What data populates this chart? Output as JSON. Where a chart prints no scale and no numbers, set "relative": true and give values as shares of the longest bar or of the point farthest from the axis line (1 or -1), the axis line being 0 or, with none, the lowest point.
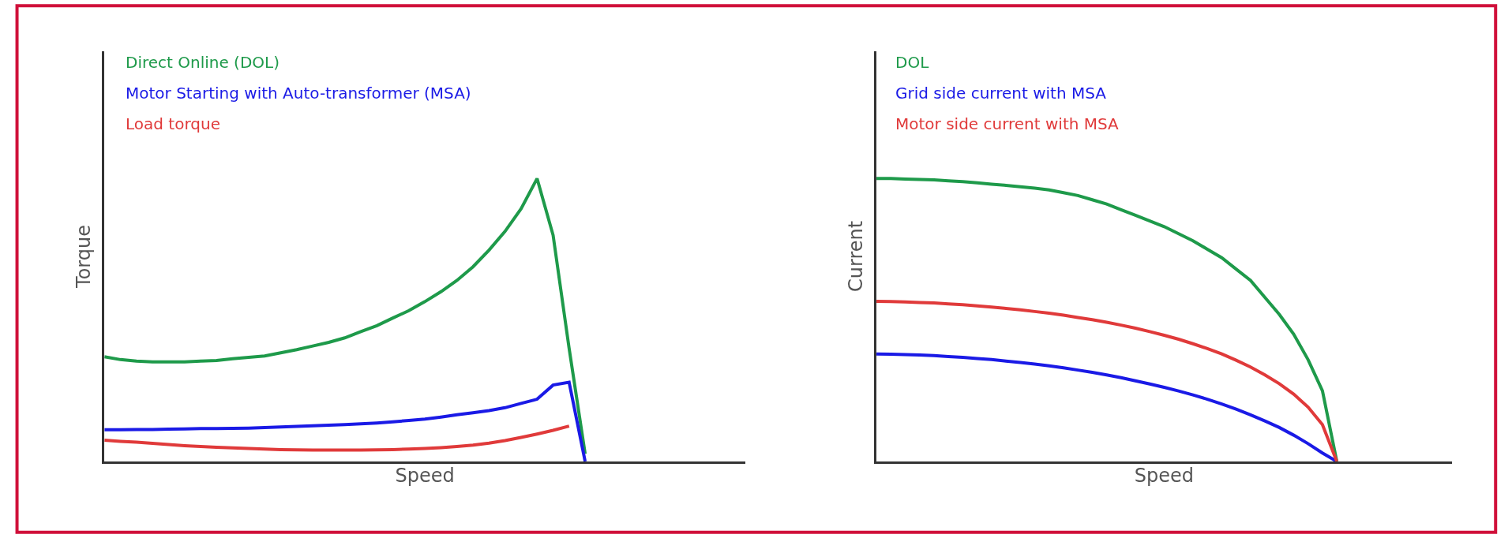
{
  "chart_data": [
    {
      "type": "line",
      "relative": true,
      "xlabel": "Speed",
      "ylabel": "Torque",
      "legend": "top left",
      "tick_labels": false,
      "marker": "none",
      "line_style": "solid",
      "categories": [
        null,
        null,
        null,
        null,
        null,
        null,
        null,
        null,
        null,
        null,
        null,
        null,
        null,
        null,
        null,
        null,
        null,
        null,
        null,
        null,
        null,
        null,
        null,
        null,
        null,
        null,
        null,
        null,
        null,
        null,
        null,
        null,
        null,
        null,
        null,
        null,
        null,
        null,
        null,
        null,
        null
      ],
      "series": [
        {
          "name": "Direct Online (DOL)",
          "color": "#1e9a4a",
          "values": [
            0.37,
            0.36,
            0.355,
            0.352,
            0.352,
            0.352,
            0.355,
            0.357,
            0.363,
            0.368,
            0.373,
            0.384,
            0.395,
            0.408,
            0.421,
            0.437,
            0.459,
            0.48,
            0.507,
            0.533,
            0.565,
            0.6,
            0.64,
            0.688,
            0.747,
            0.813,
            0.893,
            1.0,
            0.8,
            0.4,
            0.027,
            null,
            null,
            null,
            null,
            null,
            null,
            null,
            null,
            null,
            null
          ]
        },
        {
          "name": "Motor Starting with Auto-transformer (MSA)",
          "color": "#1a1ae6",
          "values": [
            0.112,
            0.112,
            0.113,
            0.113,
            0.114,
            0.115,
            0.116,
            0.116,
            0.117,
            0.118,
            0.12,
            0.122,
            0.124,
            0.126,
            0.128,
            0.13,
            0.133,
            0.136,
            0.14,
            0.145,
            0.15,
            0.157,
            0.165,
            0.172,
            0.18,
            0.19,
            0.205,
            0.22,
            0.27,
            0.28,
            0.0,
            null,
            null,
            null,
            null,
            null,
            null,
            null,
            null,
            null,
            null
          ]
        },
        {
          "name": "Load torque",
          "color": "#e03a3a",
          "values": [
            0.075,
            0.071,
            0.068,
            0.064,
            0.06,
            0.056,
            0.053,
            0.05,
            0.048,
            0.046,
            0.044,
            0.042,
            0.041,
            0.04,
            0.04,
            0.04,
            0.04,
            0.041,
            0.042,
            0.044,
            0.046,
            0.049,
            0.053,
            0.058,
            0.065,
            0.074,
            0.085,
            0.097,
            0.11,
            0.125,
            null,
            null,
            null,
            null,
            null,
            null,
            null,
            null,
            null,
            null,
            null
          ]
        }
      ]
    },
    {
      "type": "line",
      "relative": true,
      "xlabel": "Speed",
      "ylabel": "Current",
      "legend": "top left",
      "tick_labels": false,
      "marker": "none",
      "line_style": "solid",
      "categories": [
        null,
        null,
        null,
        null,
        null,
        null,
        null,
        null,
        null,
        null,
        null,
        null,
        null,
        null,
        null,
        null,
        null,
        null,
        null,
        null,
        null,
        null,
        null,
        null,
        null,
        null,
        null,
        null,
        null,
        null,
        null,
        null,
        null,
        null,
        null,
        null,
        null,
        null,
        null,
        null,
        null
      ],
      "series": [
        {
          "name": "DOL",
          "color": "#1e9a4a",
          "values": [
            1.0,
            1.0,
            0.998,
            0.997,
            0.995,
            0.992,
            0.989,
            0.985,
            0.98,
            0.976,
            0.971,
            0.966,
            0.96,
            0.95,
            0.94,
            0.925,
            0.91,
            0.89,
            0.87,
            0.85,
            0.83,
            0.805,
            0.78,
            0.75,
            0.72,
            0.68,
            0.64,
            0.58,
            0.52,
            0.45,
            0.36,
            0.25,
            0.0,
            null,
            null,
            null,
            null,
            null,
            null,
            null,
            null
          ]
        },
        {
          "name": "Grid side current with MSA",
          "color": "#1a1ae6",
          "values": [
            0.38,
            0.379,
            0.378,
            0.376,
            0.374,
            0.371,
            0.368,
            0.364,
            0.36,
            0.355,
            0.35,
            0.344,
            0.338,
            0.331,
            0.323,
            0.315,
            0.306,
            0.296,
            0.285,
            0.274,
            0.262,
            0.249,
            0.235,
            0.22,
            0.203,
            0.185,
            0.165,
            0.143,
            0.12,
            0.093,
            0.063,
            0.03,
            0.0,
            null,
            null,
            null,
            null,
            null,
            null,
            null,
            null
          ]
        },
        {
          "name": "Motor side current with MSA",
          "color": "#e03a3a",
          "values": [
            0.566,
            0.565,
            0.564,
            0.562,
            0.56,
            0.557,
            0.554,
            0.55,
            0.546,
            0.541,
            0.536,
            0.53,
            0.524,
            0.517,
            0.509,
            0.501,
            0.492,
            0.482,
            0.471,
            0.459,
            0.446,
            0.432,
            0.416,
            0.399,
            0.38,
            0.358,
            0.334,
            0.306,
            0.275,
            0.238,
            0.192,
            0.13,
            0.0,
            null,
            null,
            null,
            null,
            null,
            null,
            null,
            null
          ]
        }
      ]
    }
  ]
}
